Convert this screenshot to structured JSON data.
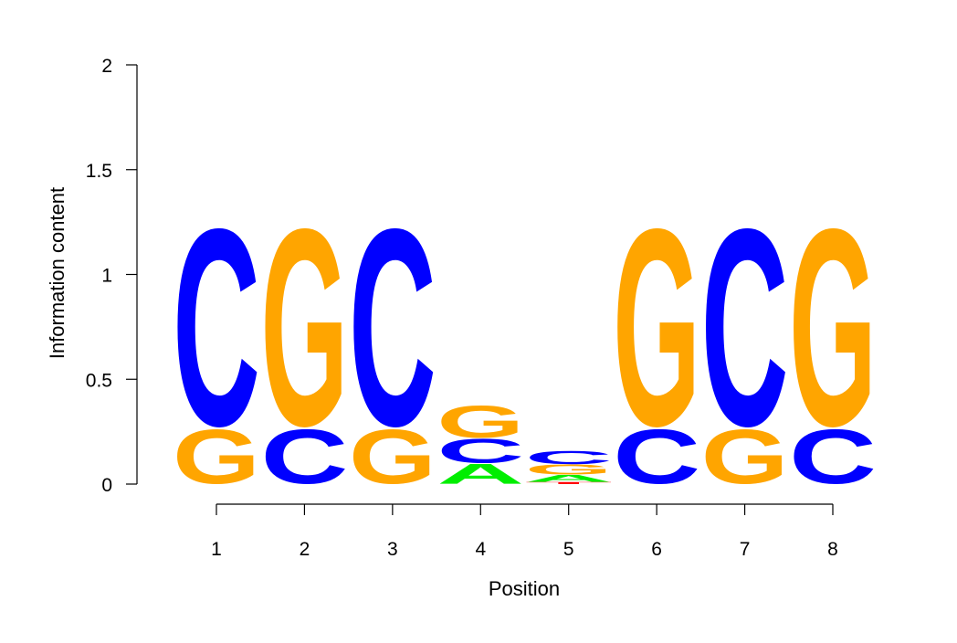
{
  "chart_data": {
    "type": "sequence-logo",
    "xlabel": "Position",
    "ylabel": "Information content",
    "ylim": [
      0,
      2
    ],
    "yticks": [
      0,
      0.5,
      1,
      1.5,
      2
    ],
    "ytick_labels": [
      "0",
      "0.5",
      "1",
      "1.5",
      "2"
    ],
    "xticks": [
      1,
      2,
      3,
      4,
      5,
      6,
      7,
      8
    ],
    "xtick_labels": [
      "1",
      "2",
      "3",
      "4",
      "5",
      "6",
      "7",
      "8"
    ],
    "colors": {
      "A": "#00ee00",
      "C": "#0000ff",
      "G": "#ffa500",
      "T": "#ff0000"
    },
    "positions": [
      {
        "position": 1,
        "stack": [
          {
            "letter": "G",
            "height": 0.27
          },
          {
            "letter": "C",
            "height": 0.98
          }
        ]
      },
      {
        "position": 2,
        "stack": [
          {
            "letter": "C",
            "height": 0.27
          },
          {
            "letter": "G",
            "height": 0.98
          }
        ]
      },
      {
        "position": 3,
        "stack": [
          {
            "letter": "G",
            "height": 0.27
          },
          {
            "letter": "C",
            "height": 0.98
          }
        ]
      },
      {
        "position": 4,
        "stack": [
          {
            "letter": "A",
            "height": 0.1
          },
          {
            "letter": "C",
            "height": 0.12
          },
          {
            "letter": "G",
            "height": 0.16
          }
        ]
      },
      {
        "position": 5,
        "stack": [
          {
            "letter": "T",
            "height": 0.01
          },
          {
            "letter": "A",
            "height": 0.035
          },
          {
            "letter": "G",
            "height": 0.05
          },
          {
            "letter": "C",
            "height": 0.065
          }
        ]
      },
      {
        "position": 6,
        "stack": [
          {
            "letter": "C",
            "height": 0.27
          },
          {
            "letter": "G",
            "height": 0.98
          }
        ]
      },
      {
        "position": 7,
        "stack": [
          {
            "letter": "G",
            "height": 0.27
          },
          {
            "letter": "C",
            "height": 0.98
          }
        ]
      },
      {
        "position": 8,
        "stack": [
          {
            "letter": "C",
            "height": 0.27
          },
          {
            "letter": "G",
            "height": 0.98
          }
        ]
      }
    ]
  }
}
